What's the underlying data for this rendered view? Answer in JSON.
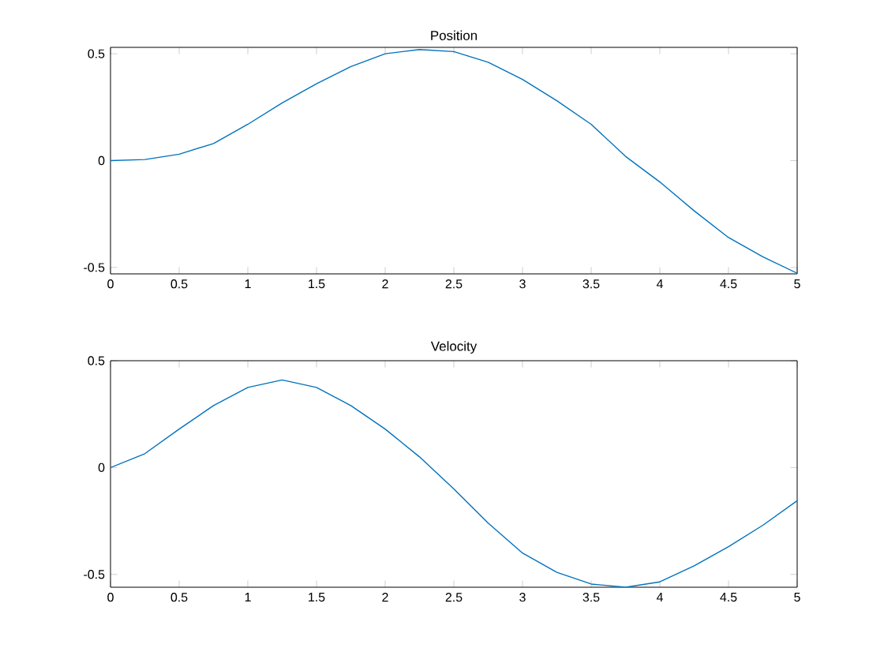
{
  "chart_data": [
    {
      "type": "line",
      "title": "Position",
      "x": [
        0,
        0.25,
        0.5,
        0.75,
        1,
        1.25,
        1.5,
        1.75,
        2,
        2.25,
        2.5,
        2.75,
        3,
        3.25,
        3.5,
        3.75,
        4,
        4.25,
        4.5,
        4.75,
        5
      ],
      "series": [
        {
          "color": "#0072bd",
          "values": [
            0,
            0.005,
            0.03,
            0.08,
            0.17,
            0.27,
            0.36,
            0.44,
            0.5,
            0.52,
            0.51,
            0.46,
            0.38,
            0.28,
            0.17,
            0.02,
            -0.1,
            -0.235,
            -0.36,
            -0.45,
            -0.527
          ]
        }
      ],
      "xlim": [
        0,
        5
      ],
      "ylim": [
        -0.53,
        0.53
      ],
      "xticks": [
        0,
        0.5,
        1,
        1.5,
        2,
        2.5,
        3,
        3.5,
        4,
        4.5,
        5
      ],
      "yticks": [
        -0.5,
        0,
        0.5
      ]
    },
    {
      "type": "line",
      "title": "Velocity",
      "x": [
        0,
        0.25,
        0.5,
        0.75,
        1,
        1.25,
        1.5,
        1.75,
        2,
        2.25,
        2.5,
        2.75,
        3,
        3.25,
        3.5,
        3.75,
        4,
        4.25,
        4.5,
        4.75,
        5
      ],
      "series": [
        {
          "color": "#0072bd",
          "values": [
            0,
            0.065,
            0.18,
            0.29,
            0.375,
            0.41,
            0.375,
            0.29,
            0.18,
            0.05,
            -0.1,
            -0.26,
            -0.4,
            -0.49,
            -0.545,
            -0.56,
            -0.535,
            -0.46,
            -0.37,
            -0.27,
            -0.155
          ]
        }
      ],
      "xlim": [
        0,
        5
      ],
      "ylim": [
        -0.56,
        0.5
      ],
      "xticks": [
        0,
        0.5,
        1,
        1.5,
        2,
        2.5,
        3,
        3.5,
        4,
        4.5,
        5
      ],
      "yticks": [
        -0.5,
        0,
        0.5
      ]
    }
  ]
}
